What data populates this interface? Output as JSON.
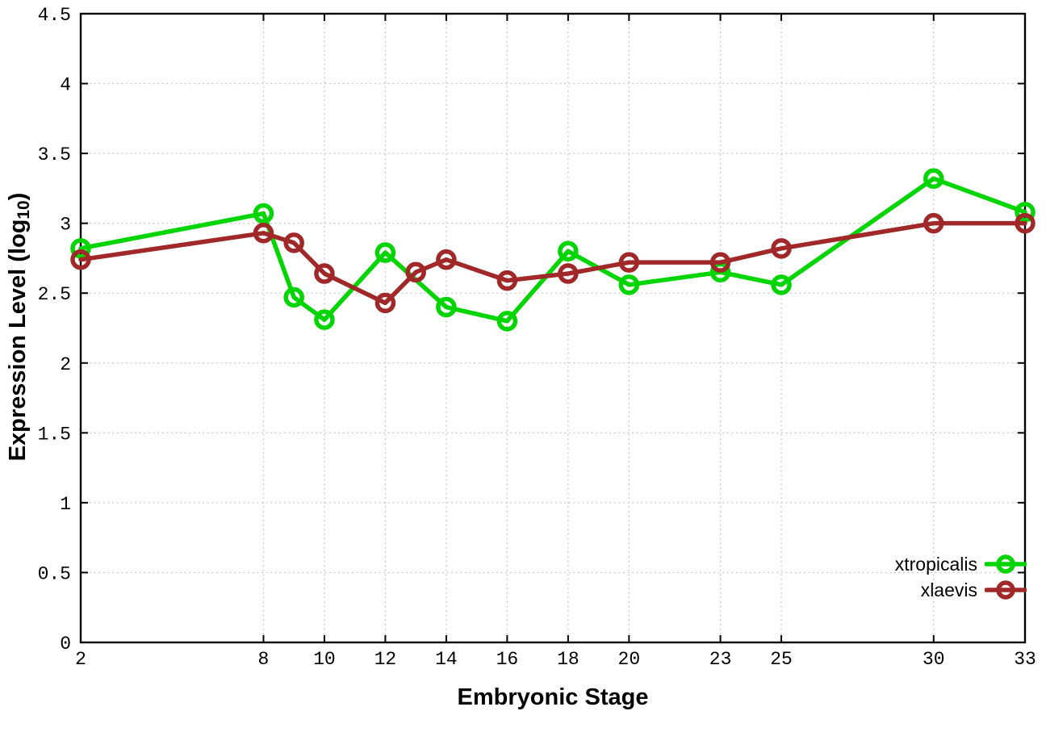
{
  "figure_title": "",
  "chart_data": {
    "type": "line",
    "title": "",
    "xlabel": "Embryonic Stage",
    "ylabel": "Expression Level (log10)",
    "ylabel_display": {
      "prefix": "Expression Level (log",
      "subscript": "10",
      "suffix": ")"
    },
    "xlim": [
      2,
      33
    ],
    "ylim": [
      0,
      4.5
    ],
    "xticks": [
      2,
      8,
      10,
      12,
      14,
      16,
      18,
      20,
      23,
      25,
      30,
      33
    ],
    "yticks": [
      0,
      0.5,
      1,
      1.5,
      2,
      2.5,
      3,
      3.5,
      4,
      4.5
    ],
    "grid": true,
    "legend_position": "inside-bottom-right",
    "series": [
      {
        "name": "xtropicalis",
        "color": "#00d500",
        "marker": "open-circle",
        "x": [
          2,
          8,
          9,
          10,
          12,
          14,
          16,
          18,
          20,
          23,
          25,
          30,
          33
        ],
        "y": [
          2.82,
          3.07,
          2.47,
          2.31,
          2.79,
          2.4,
          2.3,
          2.8,
          2.56,
          2.65,
          2.56,
          3.32,
          3.08
        ]
      },
      {
        "name": "xlaevis",
        "color": "#a02828",
        "marker": "open-circle",
        "x": [
          2,
          8,
          9,
          10,
          12,
          13,
          14,
          16,
          18,
          20,
          23,
          25,
          30,
          33
        ],
        "y": [
          2.74,
          2.93,
          2.86,
          2.64,
          2.43,
          2.65,
          2.74,
          2.59,
          2.64,
          2.72,
          2.72,
          2.82,
          3.0,
          3.0
        ]
      }
    ],
    "style": {
      "background": "#ffffff",
      "axis_color": "#000000",
      "grid_color": "#c4c4c4",
      "tick_label_color": "#000000"
    }
  }
}
